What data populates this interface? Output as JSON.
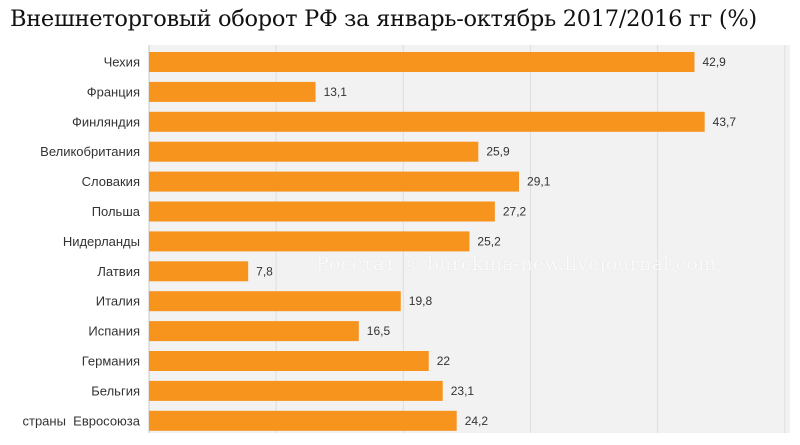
{
  "chart_data": {
    "type": "bar",
    "orientation": "horizontal",
    "title": "Внешнеторговый оборот РФ за январь-октябрь 2017/2016 гг (%)",
    "categories": [
      "Чехия",
      "Франция",
      "Финляндия",
      "Великобритания",
      "Словакия",
      "Польша",
      "Нидерланды",
      "Латвия",
      "Италия",
      "Испания",
      "Германия",
      "Бельгия",
      "страны  Евросоюза"
    ],
    "values": [
      42.9,
      13.1,
      43.7,
      25.9,
      29.1,
      27.2,
      25.2,
      7.8,
      19.8,
      16.5,
      22,
      23.1,
      24.2
    ],
    "value_labels": [
      "42,9",
      "13,1",
      "43,7",
      "25,9",
      "29,1",
      "27,2",
      "25,2",
      "7,8",
      "19,8",
      "16,5",
      "22",
      "23,1",
      "24,2"
    ],
    "xlim": [
      0,
      50
    ],
    "grid": true,
    "bar_color": "#f7941e",
    "plot_background": "#f2f2f2"
  },
  "watermark": "Росстат © burckina-new.livejournal.com"
}
